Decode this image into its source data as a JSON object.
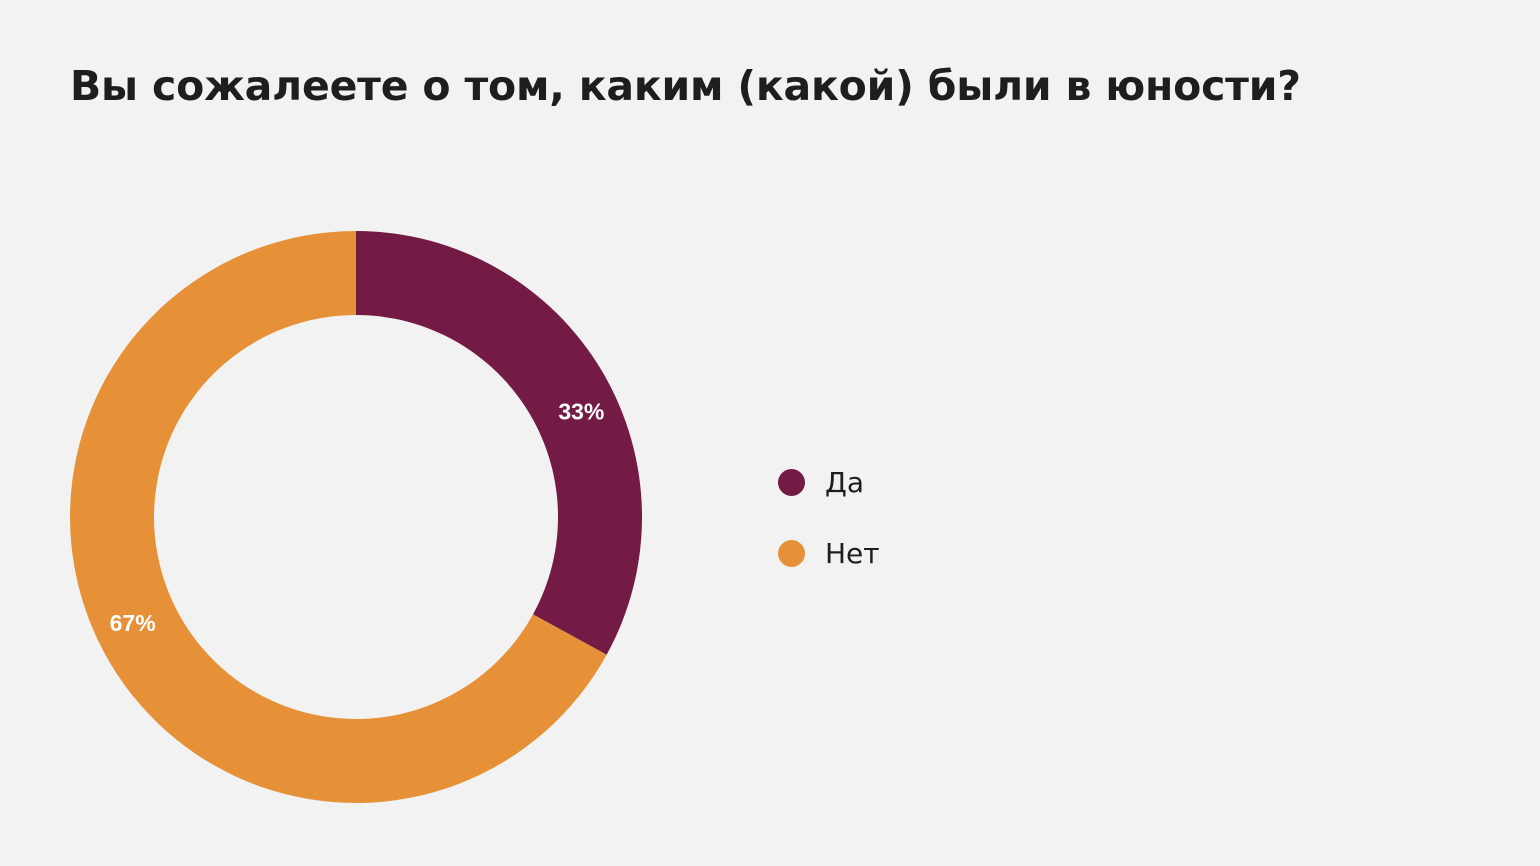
{
  "title": "Вы сожалеете о том, каким (какой) были в юности?",
  "chart_data": {
    "type": "pie",
    "title": "Вы сожалеете о том, каким (какой) были в юности?",
    "categories": [
      "Да",
      "Нет"
    ],
    "values": [
      33,
      67
    ],
    "labels": [
      "33%",
      "67%"
    ],
    "colors": [
      "#731a45",
      "#e69138"
    ],
    "donut": true,
    "legend_position": "right"
  },
  "legend": {
    "items": [
      {
        "label": "Да",
        "color": "#731a45"
      },
      {
        "label": "Нет",
        "color": "#e69138"
      }
    ]
  }
}
